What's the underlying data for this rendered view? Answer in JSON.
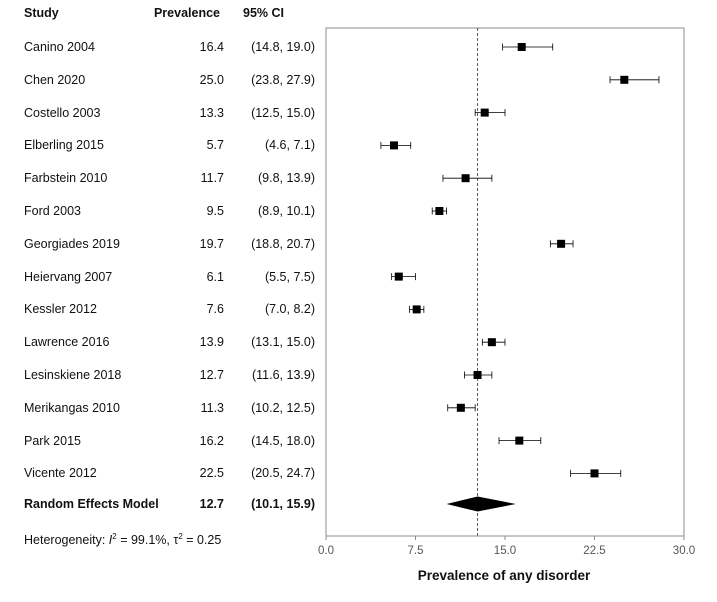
{
  "headers": {
    "study": "Study",
    "prevalence": "Prevalence",
    "ci": "95% CI"
  },
  "rows": [
    {
      "study": "Canino 2004",
      "prevalence": "16.4",
      "ci": "(14.8, 19.0)"
    },
    {
      "study": "Chen 2020",
      "prevalence": "25.0",
      "ci": "(23.8, 27.9)"
    },
    {
      "study": "Costello 2003",
      "prevalence": "13.3",
      "ci": "(12.5, 15.0)"
    },
    {
      "study": "Elberling 2015",
      "prevalence": "5.7",
      "ci": "(4.6, 7.1)"
    },
    {
      "study": "Farbstein 2010",
      "prevalence": "11.7",
      "ci": "(9.8, 13.9)"
    },
    {
      "study": "Ford 2003",
      "prevalence": "9.5",
      "ci": "(8.9, 10.1)"
    },
    {
      "study": "Georgiades 2019",
      "prevalence": "19.7",
      "ci": "(18.8, 20.7)"
    },
    {
      "study": "Heiervang 2007",
      "prevalence": "6.1",
      "ci": "(5.5, 7.5)"
    },
    {
      "study": "Kessler 2012",
      "prevalence": "7.6",
      "ci": "(7.0, 8.2)"
    },
    {
      "study": "Lawrence 2016",
      "prevalence": "13.9",
      "ci": "(13.1, 15.0)"
    },
    {
      "study": "Lesinskiene 2018",
      "prevalence": "12.7",
      "ci": "(11.6, 13.9)"
    },
    {
      "study": "Merikangas 2010",
      "prevalence": "11.3",
      "ci": "(10.2, 12.5)"
    },
    {
      "study": "Park 2015",
      "prevalence": "16.2",
      "ci": "(14.5, 18.0)"
    },
    {
      "study": "Vicente 2012",
      "prevalence": "22.5",
      "ci": "(20.5, 24.7)"
    }
  ],
  "summary": {
    "label": "Random Effects Model",
    "prevalence": "12.7",
    "ci": "(10.1, 15.9)"
  },
  "heterogeneity": {
    "prefix": "Heterogeneity: ",
    "i2_symbol": "I",
    "i2_value": " = 99.1%, ",
    "tau_symbol": "τ",
    "tau_value": " = 0.25"
  },
  "chart_data": {
    "type": "forest",
    "xlabel": "Prevalence of any disorder",
    "xlim": [
      0,
      30
    ],
    "ticks": [
      0,
      7.5,
      15,
      22.5,
      30
    ],
    "tick_labels": [
      "0.0",
      "7.5",
      "15.0",
      "22.5",
      "30.0"
    ],
    "reference_line": 12.7,
    "points": [
      {
        "study": "Canino 2004",
        "estimate": 16.4,
        "lower": 14.8,
        "upper": 19.0
      },
      {
        "study": "Chen 2020",
        "estimate": 25.0,
        "lower": 23.8,
        "upper": 27.9
      },
      {
        "study": "Costello 2003",
        "estimate": 13.3,
        "lower": 12.5,
        "upper": 15.0
      },
      {
        "study": "Elberling 2015",
        "estimate": 5.7,
        "lower": 4.6,
        "upper": 7.1
      },
      {
        "study": "Farbstein 2010",
        "estimate": 11.7,
        "lower": 9.8,
        "upper": 13.9
      },
      {
        "study": "Ford 2003",
        "estimate": 9.5,
        "lower": 8.9,
        "upper": 10.1
      },
      {
        "study": "Georgiades 2019",
        "estimate": 19.7,
        "lower": 18.8,
        "upper": 20.7
      },
      {
        "study": "Heiervang 2007",
        "estimate": 6.1,
        "lower": 5.5,
        "upper": 7.5
      },
      {
        "study": "Kessler 2012",
        "estimate": 7.6,
        "lower": 7.0,
        "upper": 8.2
      },
      {
        "study": "Lawrence 2016",
        "estimate": 13.9,
        "lower": 13.1,
        "upper": 15.0
      },
      {
        "study": "Lesinskiene 2018",
        "estimate": 12.7,
        "lower": 11.6,
        "upper": 13.9
      },
      {
        "study": "Merikangas 2010",
        "estimate": 11.3,
        "lower": 10.2,
        "upper": 12.5
      },
      {
        "study": "Park 2015",
        "estimate": 16.2,
        "lower": 14.5,
        "upper": 18.0
      },
      {
        "study": "Vicente 2012",
        "estimate": 22.5,
        "lower": 20.5,
        "upper": 24.7
      }
    ],
    "summary": {
      "estimate": 12.7,
      "lower": 10.1,
      "upper": 15.9
    },
    "colors": {
      "marker": "#000000",
      "axis": "#8c8c8c",
      "reference": "#555555"
    }
  }
}
